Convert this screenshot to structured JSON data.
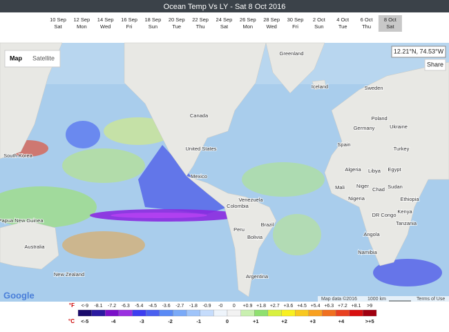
{
  "title": "Ocean Temp Vs LY - Sat 8 Oct 2016",
  "dates": [
    {
      "date": "10 Sep",
      "day": "Sat"
    },
    {
      "date": "12 Sep",
      "day": "Mon"
    },
    {
      "date": "14 Sep",
      "day": "Wed"
    },
    {
      "date": "16 Sep",
      "day": "Fri"
    },
    {
      "date": "18 Sep",
      "day": "Sun"
    },
    {
      "date": "20 Sep",
      "day": "Tue"
    },
    {
      "date": "22 Sep",
      "day": "Thu"
    },
    {
      "date": "24 Sep",
      "day": "Sat"
    },
    {
      "date": "26 Sep",
      "day": "Mon"
    },
    {
      "date": "28 Sep",
      "day": "Wed"
    },
    {
      "date": "30 Sep",
      "day": "Fri"
    },
    {
      "date": "2 Oct",
      "day": "Sun"
    },
    {
      "date": "4 Oct",
      "day": "Tue"
    },
    {
      "date": "6 Oct",
      "day": "Thu"
    },
    {
      "date": "8 Oct",
      "day": "Sat"
    }
  ],
  "selected_date": 14,
  "map": {
    "map_button": "Map",
    "satellite_button": "Satellite",
    "coordinates": "12.21°N, 74.53°W",
    "share_button": "Share",
    "labels": [
      "Greenland",
      "Iceland",
      "Sweden",
      "Canada",
      "United States",
      "Mexico",
      "Venezuela",
      "Colombia",
      "Peru",
      "Brazil",
      "Bolivia",
      "Argentina",
      "Spain",
      "Germany",
      "Poland",
      "Ukraine",
      "Turkey",
      "Algeria",
      "Libya",
      "Egypt",
      "Mali",
      "Niger",
      "Chad",
      "Sudan",
      "Nigeria",
      "Ethiopia",
      "DR Congo",
      "Kenya",
      "Tanzania",
      "Angola",
      "Namibia",
      "South Korea",
      "Papua New Guinea",
      "Australia",
      "New Zealand"
    ],
    "logo": "Google",
    "attribution": "Map data ©2016",
    "scale": "1000 km",
    "terms": "Terms of Use"
  },
  "legend": {
    "f_unit": "°F",
    "c_unit": "°C",
    "f_labels": [
      "<-9",
      "-8.1",
      "-7.2",
      "-6.3",
      "-5.4",
      "-4.5",
      "-3.6",
      "-2.7",
      "-1.8",
      "-0.9",
      "-0",
      "0",
      "+0.9",
      "+1.8",
      "+2.7",
      "+3.6",
      "+4.5",
      "+5.4",
      "+6.3",
      "+7.2",
      "+8.1",
      ">9"
    ],
    "colors": [
      "#1a0a6b",
      "#2b1aa0",
      "#7a10c8",
      "#9a30e0",
      "#3d3df0",
      "#4a60f0",
      "#5a8af5",
      "#7aaaf8",
      "#9fc4fa",
      "#c5dcfc",
      "#eef4fb",
      "#f2f2f2",
      "#c9f0b0",
      "#8fe070",
      "#d8f040",
      "#f8f020",
      "#f8c820",
      "#f8a020",
      "#f07020",
      "#e84020",
      "#d81010",
      "#a00010"
    ],
    "c_labels": [
      "<-5",
      "-4",
      "-3",
      "-2",
      "-1",
      "0",
      "+1",
      "+2",
      "+3",
      "+4",
      ">+5"
    ]
  }
}
